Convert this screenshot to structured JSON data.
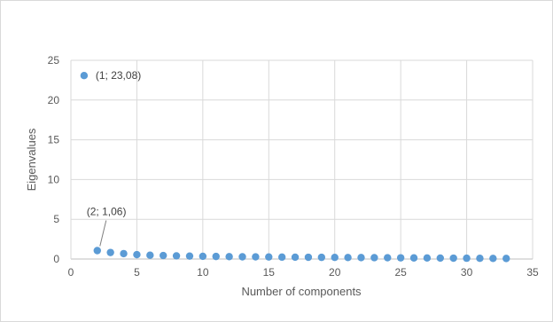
{
  "chart_data": {
    "type": "scatter",
    "xlabel": "Number of components",
    "ylabel": "Eigenvalues",
    "xlim": [
      0,
      35
    ],
    "ylim": [
      0,
      25
    ],
    "xticks": [
      0,
      5,
      10,
      15,
      20,
      25,
      30,
      35
    ],
    "yticks": [
      0,
      5,
      10,
      15,
      20,
      25
    ],
    "xtick_labels": [
      "0",
      "5",
      "10",
      "15",
      "20",
      "25",
      "30",
      "35"
    ],
    "ytick_labels": [
      "0",
      "5",
      "10",
      "15",
      "20",
      "25"
    ],
    "grid": "vertical and horizontal",
    "legend": "none",
    "marker_color": "#5b9bd5",
    "points": [
      {
        "x": 1,
        "y": 23.08
      },
      {
        "x": 2,
        "y": 1.06
      },
      {
        "x": 3,
        "y": 0.82
      },
      {
        "x": 4,
        "y": 0.68
      },
      {
        "x": 5,
        "y": 0.55
      },
      {
        "x": 6,
        "y": 0.48
      },
      {
        "x": 7,
        "y": 0.44
      },
      {
        "x": 8,
        "y": 0.4
      },
      {
        "x": 9,
        "y": 0.37
      },
      {
        "x": 10,
        "y": 0.34
      },
      {
        "x": 11,
        "y": 0.32
      },
      {
        "x": 12,
        "y": 0.3
      },
      {
        "x": 13,
        "y": 0.28
      },
      {
        "x": 14,
        "y": 0.27
      },
      {
        "x": 15,
        "y": 0.26
      },
      {
        "x": 16,
        "y": 0.24
      },
      {
        "x": 17,
        "y": 0.23
      },
      {
        "x": 18,
        "y": 0.22
      },
      {
        "x": 19,
        "y": 0.21
      },
      {
        "x": 20,
        "y": 0.2
      },
      {
        "x": 21,
        "y": 0.19
      },
      {
        "x": 22,
        "y": 0.18
      },
      {
        "x": 23,
        "y": 0.17
      },
      {
        "x": 24,
        "y": 0.16
      },
      {
        "x": 25,
        "y": 0.15
      },
      {
        "x": 26,
        "y": 0.14
      },
      {
        "x": 27,
        "y": 0.13
      },
      {
        "x": 28,
        "y": 0.12
      },
      {
        "x": 29,
        "y": 0.11
      },
      {
        "x": 30,
        "y": 0.1
      },
      {
        "x": 31,
        "y": 0.09
      },
      {
        "x": 32,
        "y": 0.08
      },
      {
        "x": 33,
        "y": 0.07
      }
    ],
    "annotations": [
      {
        "x": 1,
        "y": 23.08,
        "text": "(1; 23,08)"
      },
      {
        "x": 2,
        "y": 1.06,
        "text": "(2; 1,06)"
      }
    ]
  }
}
